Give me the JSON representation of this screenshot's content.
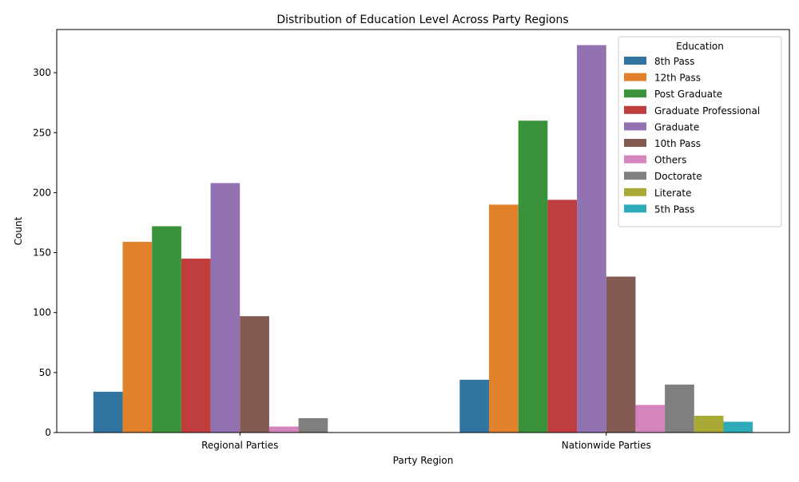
{
  "chart_data": {
    "type": "bar",
    "title": "Distribution of Education Level Across Party Regions",
    "xlabel": "Party Region",
    "ylabel": "Count",
    "ylim": [
      0,
      336
    ],
    "yticks": [
      0,
      50,
      100,
      150,
      200,
      250,
      300
    ],
    "categories": [
      "Regional Parties",
      "Nationwide Parties"
    ],
    "legend_title": "Education",
    "legend_position": "top-right",
    "series": [
      {
        "name": "8th Pass",
        "color": "#3274a1",
        "values": [
          34,
          44
        ]
      },
      {
        "name": "12th Pass",
        "color": "#e1812c",
        "values": [
          159,
          190
        ]
      },
      {
        "name": "Post Graduate",
        "color": "#3a923a",
        "values": [
          172,
          260
        ]
      },
      {
        "name": "Graduate Professional",
        "color": "#c03d3e",
        "values": [
          145,
          194
        ]
      },
      {
        "name": "Graduate",
        "color": "#9372b2",
        "values": [
          208,
          323
        ]
      },
      {
        "name": "10th Pass",
        "color": "#845b53",
        "values": [
          97,
          130
        ]
      },
      {
        "name": "Others",
        "color": "#d684bd",
        "values": [
          5,
          23
        ]
      },
      {
        "name": "Doctorate",
        "color": "#7f7f7f",
        "values": [
          12,
          40
        ]
      },
      {
        "name": "Literate",
        "color": "#a9aa35",
        "values": [
          null,
          14
        ]
      },
      {
        "name": "5th Pass",
        "color": "#2eabb8",
        "values": [
          null,
          9
        ]
      }
    ]
  }
}
